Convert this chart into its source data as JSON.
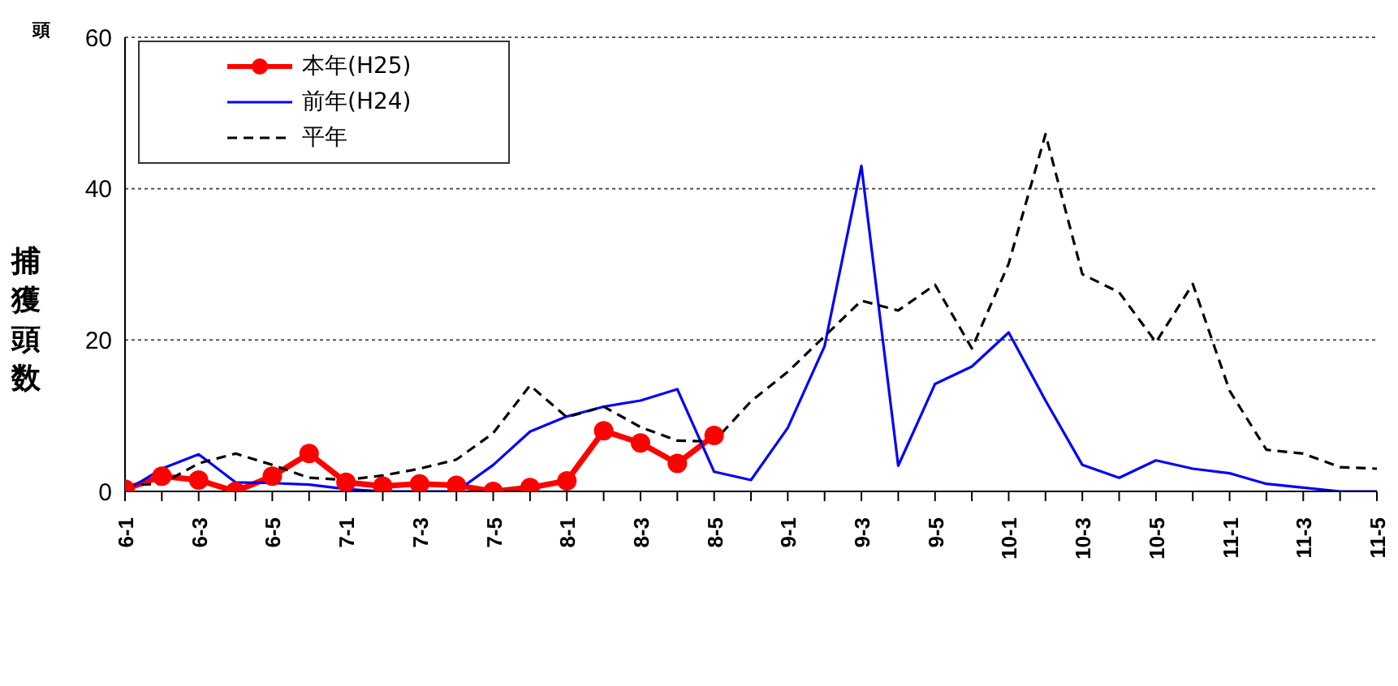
{
  "chart_data": {
    "type": "line",
    "ylabel": "捕獲頭数",
    "annotations": [
      "頭"
    ],
    "categories": [
      "6-1",
      null,
      "6-3",
      null,
      "6-5",
      null,
      "7-1",
      null,
      "7-3",
      null,
      "7-5",
      null,
      "8-1",
      null,
      "8-3",
      null,
      "8-5",
      null,
      "9-1",
      null,
      "9-3",
      null,
      "9-5",
      null,
      "10-1",
      null,
      "10-3",
      null,
      "10-5",
      null,
      "11-1",
      null,
      "11-3",
      null,
      "11-5"
    ],
    "series": [
      {
        "name": "本年(H25)",
        "color": "#ff0000",
        "marker": "circle",
        "line_style": "solid",
        "values": [
          0.3,
          2,
          1.5,
          0,
          2,
          5,
          1.2,
          0.7,
          1,
          0.8,
          0,
          0.5,
          1.4,
          8,
          6.4,
          3.7,
          7.4,
          null,
          null,
          null,
          null,
          null,
          null,
          null,
          null,
          null,
          null,
          null,
          null,
          null,
          null,
          null,
          null,
          null,
          null
        ]
      },
      {
        "name": "前年(H24)",
        "color": "#0000ff",
        "marker": "none",
        "line_style": "solid",
        "values": [
          0,
          3,
          4.9,
          1.2,
          1.1,
          0.9,
          0.3,
          0,
          0,
          0,
          3.5,
          7.9,
          9.9,
          11.2,
          12,
          13.5,
          2.6,
          1.5,
          8.4,
          19.2,
          43,
          3.4,
          14.2,
          16.5,
          21,
          12,
          3.5,
          1.8,
          4.1,
          3,
          2.4,
          1,
          0.5,
          0,
          0
        ]
      },
      {
        "name": "平年",
        "color": "#000000",
        "marker": "none",
        "line_style": "dashed",
        "values": [
          0.8,
          1,
          3.7,
          5,
          3.5,
          1.8,
          1.5,
          2.1,
          3,
          4.2,
          7.7,
          14,
          9.8,
          11.2,
          8.5,
          6.7,
          6.6,
          11.9,
          15.8,
          20.5,
          25.2,
          23.9,
          27.3,
          18.9,
          30.1,
          47.2,
          28.7,
          26.3,
          19.7,
          27.4,
          13.3,
          5.5,
          5,
          3.2,
          3
        ]
      }
    ],
    "ylim": [
      0,
      60
    ],
    "yticks": [
      0,
      20,
      40,
      60
    ],
    "grid": "y",
    "legend": "top left"
  }
}
